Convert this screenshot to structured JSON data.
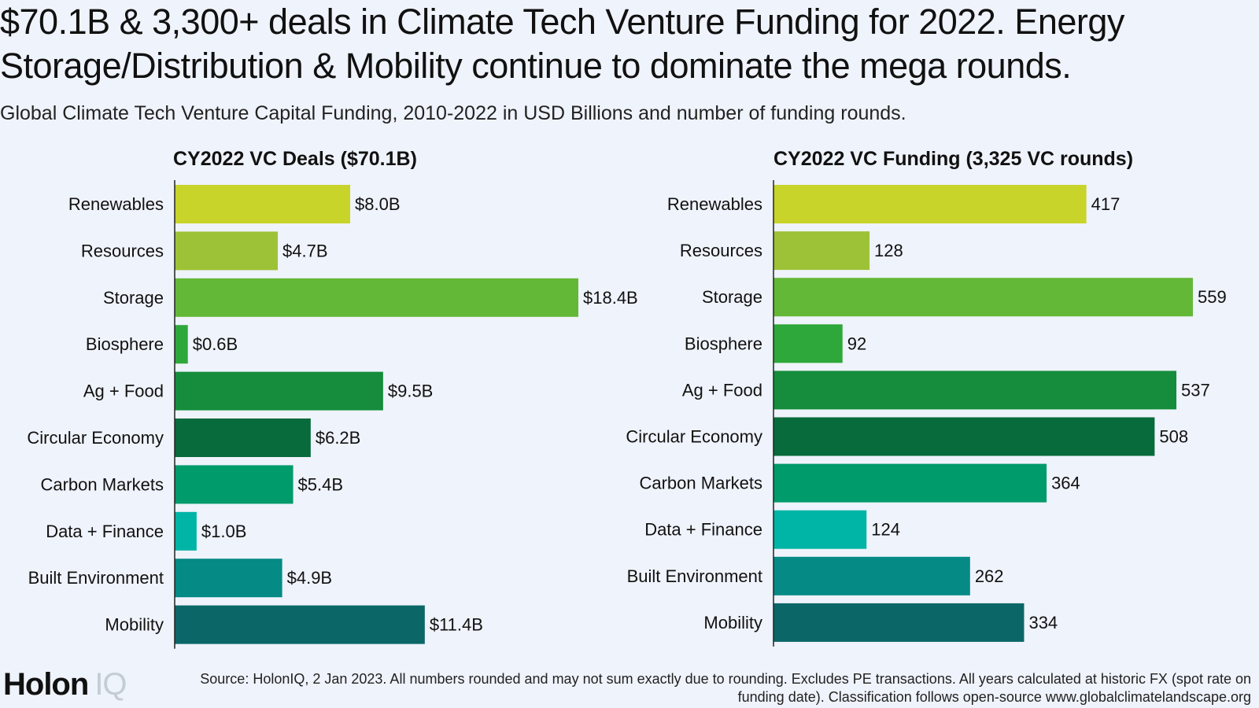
{
  "title": "$70.1B & 3,300+ deals in Climate Tech Venture Funding for 2022. Energy Storage/Distribution & Mobility continue to dominate the mega rounds.",
  "subtitle": "Global Climate Tech Venture Capital Funding, 2010-2022 in USD Billions and number of funding rounds.",
  "logo": {
    "holon": "Holon",
    "iq": "IQ"
  },
  "source": "Source: HolonIQ, 2 Jan 2023. All numbers rounded and may not sum exactly due to rounding. Excludes PE transactions. All years calculated at historic FX (spot rate on funding date). Classification follows open-source www.globalclimatelandscape.org",
  "chart_data": [
    {
      "type": "bar",
      "orientation": "horizontal",
      "title": "CY2022 VC Deals ($70.1B)",
      "categories": [
        "Renewables",
        "Resources",
        "Storage",
        "Biosphere",
        "Ag + Food",
        "Circular Economy",
        "Carbon Markets",
        "Data + Finance",
        "Built Environment",
        "Mobility"
      ],
      "values": [
        8.0,
        4.7,
        18.4,
        0.6,
        9.5,
        6.2,
        5.4,
        1.0,
        4.9,
        11.4
      ],
      "value_labels": [
        "$8.0B",
        "$4.7B",
        "$18.4B",
        "$0.6B",
        "$9.5B",
        "$6.2B",
        "$5.4B",
        "$1.0B",
        "$4.9B",
        "$11.4B"
      ],
      "colors": [
        "#c8d42a",
        "#9dc237",
        "#64b837",
        "#2ea83a",
        "#158d3c",
        "#076b3b",
        "#009b6b",
        "#00b5a6",
        "#058a86",
        "#0b6667"
      ],
      "xlim": [
        0,
        18.4
      ],
      "grid": false
    },
    {
      "type": "bar",
      "orientation": "horizontal",
      "title": "CY2022 VC Funding (3,325 VC rounds)",
      "categories": [
        "Renewables",
        "Resources",
        "Storage",
        "Biosphere",
        "Ag + Food",
        "Circular Economy",
        "Carbon Markets",
        "Data + Finance",
        "Built Environment",
        "Mobility"
      ],
      "values": [
        417,
        128,
        559,
        92,
        537,
        508,
        364,
        124,
        262,
        334
      ],
      "value_labels": [
        "417",
        "128",
        "559",
        "92",
        "537",
        "508",
        "364",
        "124",
        "262",
        "334"
      ],
      "colors": [
        "#c8d42a",
        "#9dc237",
        "#64b837",
        "#2ea83a",
        "#158d3c",
        "#076b3b",
        "#009b6b",
        "#00b5a6",
        "#058a86",
        "#0b6667"
      ],
      "xlim": [
        0,
        559
      ],
      "grid": false
    }
  ]
}
